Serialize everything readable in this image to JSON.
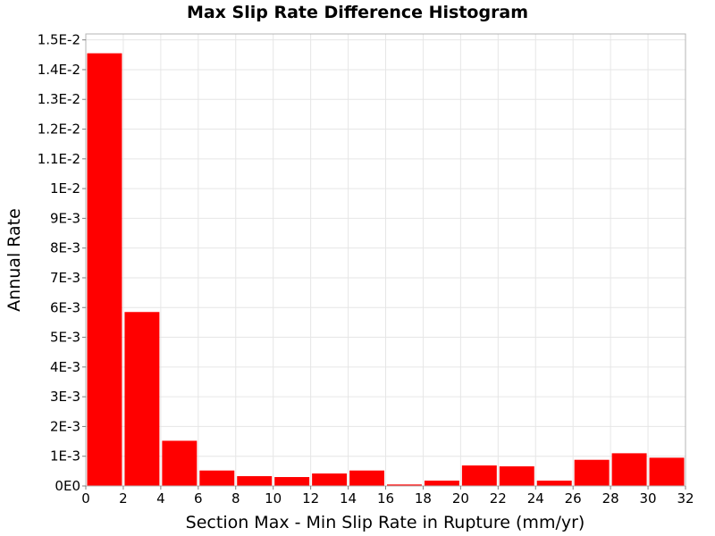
{
  "chart_data": {
    "type": "bar",
    "title": "Max Slip Rate Difference Histogram",
    "xlabel": "Section Max - Min Slip Rate in Rupture (mm/yr)",
    "ylabel": "Annual Rate",
    "bar_color": "#ff0000",
    "grid": true,
    "xlim": [
      0,
      32
    ],
    "ylim": [
      0,
      0.0152
    ],
    "bin_width": 2,
    "x": [
      1,
      3,
      5,
      7,
      9,
      11,
      13,
      15,
      17,
      19,
      21,
      23,
      25,
      27,
      29,
      31
    ],
    "values": [
      0.01455,
      0.00585,
      0.00152,
      0.00052,
      0.00033,
      0.0003,
      0.00042,
      0.00052,
      5e-05,
      0.00018,
      0.00069,
      0.00066,
      0.00018,
      0.00088,
      0.0011,
      0.00095
    ],
    "xticks": [
      0,
      2,
      4,
      6,
      8,
      10,
      12,
      14,
      16,
      18,
      20,
      22,
      24,
      26,
      28,
      30,
      32
    ],
    "yticks": [
      {
        "value": 0,
        "label": "0E0"
      },
      {
        "value": 0.001,
        "label": "1E-3"
      },
      {
        "value": 0.002,
        "label": "2E-3"
      },
      {
        "value": 0.003,
        "label": "3E-3"
      },
      {
        "value": 0.004,
        "label": "4E-3"
      },
      {
        "value": 0.005,
        "label": "5E-3"
      },
      {
        "value": 0.006,
        "label": "6E-3"
      },
      {
        "value": 0.007,
        "label": "7E-3"
      },
      {
        "value": 0.008,
        "label": "8E-3"
      },
      {
        "value": 0.009,
        "label": "9E-3"
      },
      {
        "value": 0.01,
        "label": "1E-2"
      },
      {
        "value": 0.011,
        "label": "1.1E-2"
      },
      {
        "value": 0.012,
        "label": "1.2E-2"
      },
      {
        "value": 0.013,
        "label": "1.3E-2"
      },
      {
        "value": 0.014,
        "label": "1.4E-2"
      },
      {
        "value": 0.015,
        "label": "1.5E-2"
      }
    ]
  }
}
